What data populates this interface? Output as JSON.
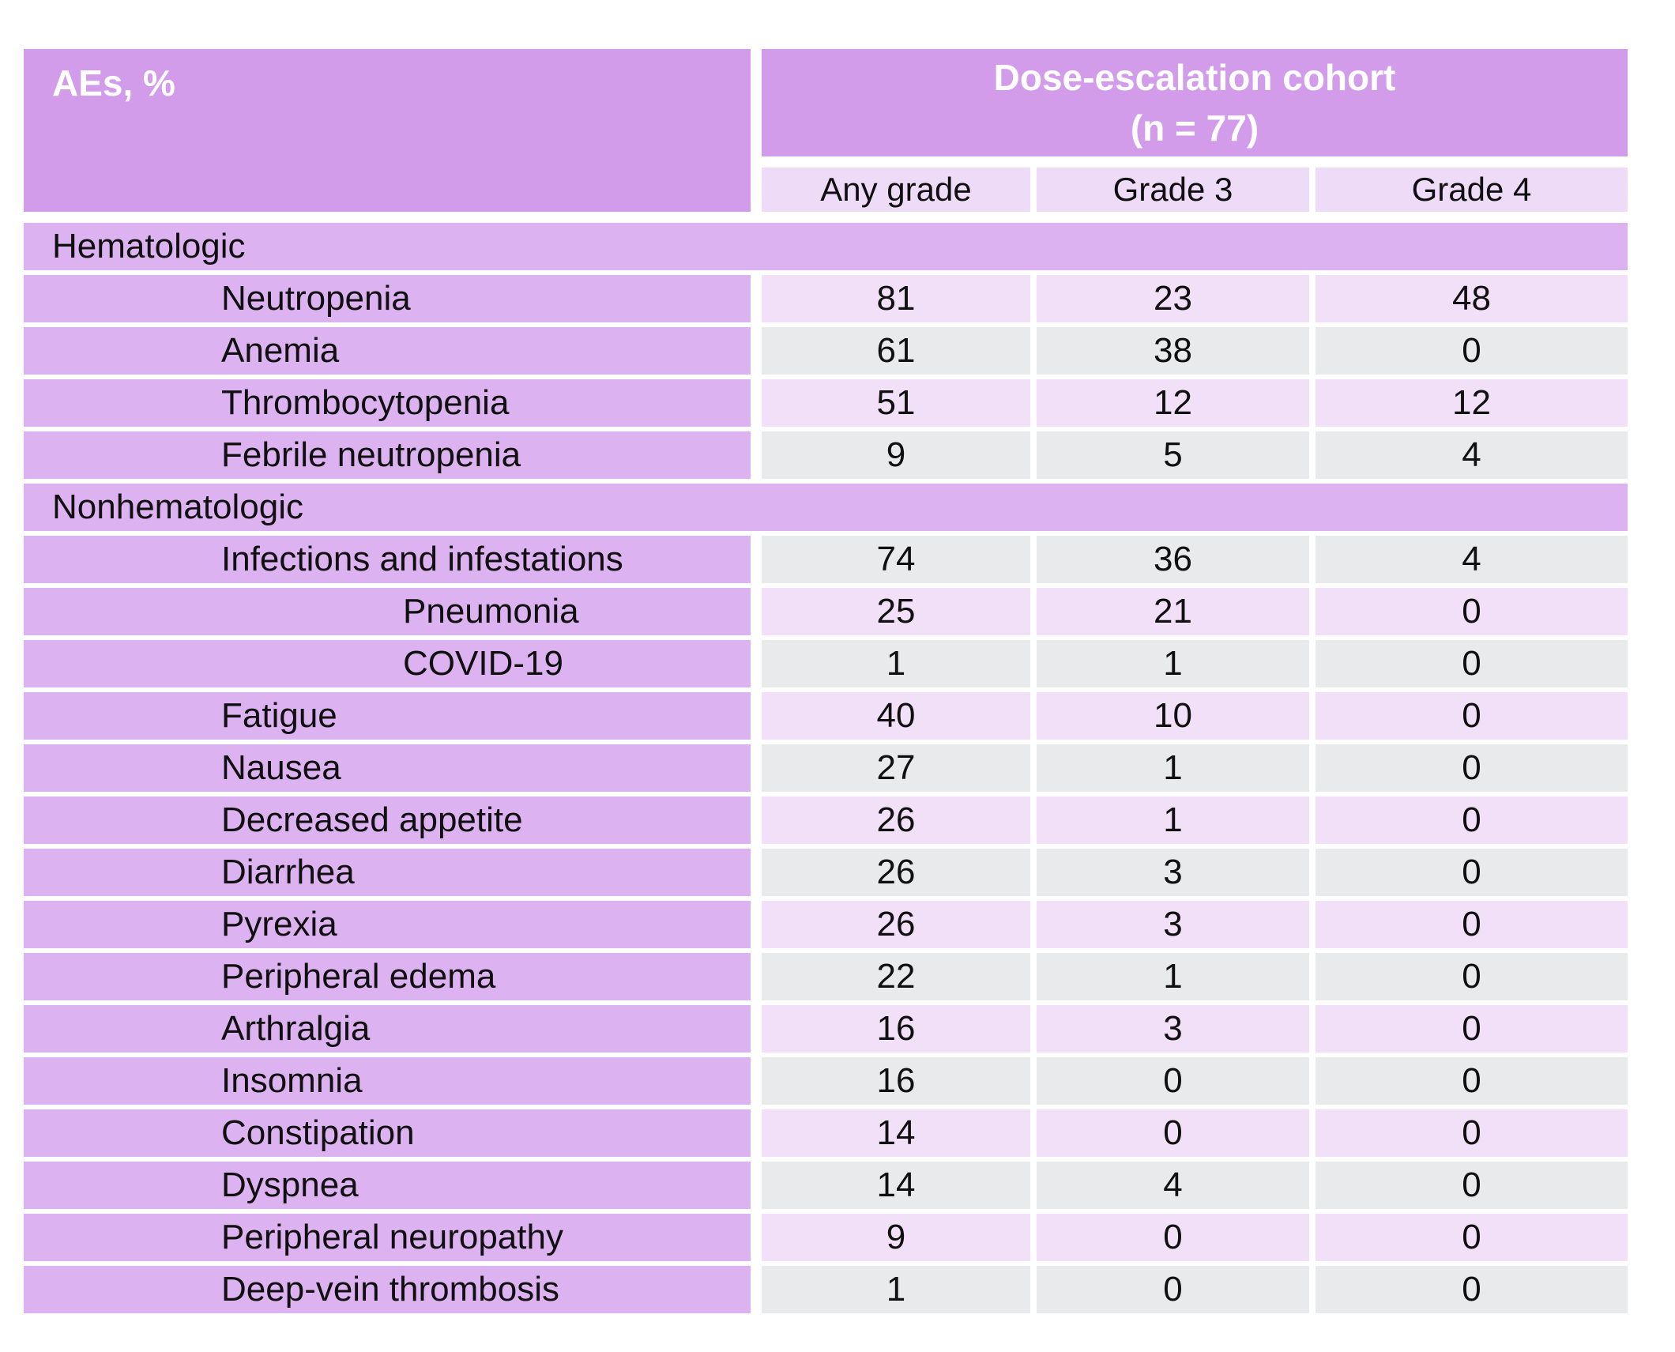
{
  "table": {
    "corner_header": "AEs, %",
    "group_header": {
      "line1": "Dose-escalation cohort",
      "line2": "(n = 77)"
    },
    "columns": [
      "Any grade",
      "Grade 3",
      "Grade 4"
    ],
    "sections": [
      "Hematologic",
      "Nonhematologic"
    ],
    "rows": [
      {
        "type": "section",
        "label": "Hematologic"
      },
      {
        "type": "item",
        "indent": 1,
        "label": "Neutropenia",
        "values": [
          "81",
          "23",
          "48"
        ]
      },
      {
        "type": "item",
        "indent": 1,
        "label": "Anemia",
        "values": [
          "61",
          "38",
          "0"
        ]
      },
      {
        "type": "item",
        "indent": 1,
        "label": "Thrombocytopenia",
        "values": [
          "51",
          "12",
          "12"
        ]
      },
      {
        "type": "item",
        "indent": 1,
        "label": "Febrile neutropenia",
        "values": [
          "9",
          "5",
          "4"
        ]
      },
      {
        "type": "section",
        "label": "Nonhematologic"
      },
      {
        "type": "item",
        "indent": 1,
        "label": "Infections and infestations",
        "values": [
          "74",
          "36",
          "4"
        ]
      },
      {
        "type": "item",
        "indent": 2,
        "label": "Pneumonia",
        "values": [
          "25",
          "21",
          "0"
        ]
      },
      {
        "type": "item",
        "indent": 2,
        "label": "COVID-19",
        "values": [
          "1",
          "1",
          "0"
        ]
      },
      {
        "type": "item",
        "indent": 1,
        "label": "Fatigue",
        "values": [
          "40",
          "10",
          "0"
        ]
      },
      {
        "type": "item",
        "indent": 1,
        "label": "Nausea",
        "values": [
          "27",
          "1",
          "0"
        ]
      },
      {
        "type": "item",
        "indent": 1,
        "label": "Decreased appetite",
        "values": [
          "26",
          "1",
          "0"
        ]
      },
      {
        "type": "item",
        "indent": 1,
        "label": "Diarrhea",
        "values": [
          "26",
          "3",
          "0"
        ]
      },
      {
        "type": "item",
        "indent": 1,
        "label": "Pyrexia",
        "values": [
          "26",
          "3",
          "0"
        ]
      },
      {
        "type": "item",
        "indent": 1,
        "label": "Peripheral edema",
        "values": [
          "22",
          "1",
          "0"
        ]
      },
      {
        "type": "item",
        "indent": 1,
        "label": "Arthralgia",
        "values": [
          "16",
          "3",
          "0"
        ]
      },
      {
        "type": "item",
        "indent": 1,
        "label": "Insomnia",
        "values": [
          "16",
          "0",
          "0"
        ]
      },
      {
        "type": "item",
        "indent": 1,
        "label": "Constipation",
        "values": [
          "14",
          "0",
          "0"
        ]
      },
      {
        "type": "item",
        "indent": 1,
        "label": "Dyspnea",
        "values": [
          "14",
          "4",
          "0"
        ]
      },
      {
        "type": "item",
        "indent": 1,
        "label": "Peripheral neuropathy",
        "values": [
          "9",
          "0",
          "0"
        ]
      },
      {
        "type": "item",
        "indent": 1,
        "label": "Deep-vein thrombosis",
        "values": [
          "1",
          "0",
          "0"
        ]
      }
    ],
    "colors": {
      "header_purple": "#d29ceb",
      "section_purple": "#dcb3f0",
      "subhead_bg": "#eddbf7",
      "band_pink": "#f2dff8",
      "band_gray": "#e8eaec",
      "header_text": "#ffffff",
      "body_text": "#101010"
    }
  }
}
